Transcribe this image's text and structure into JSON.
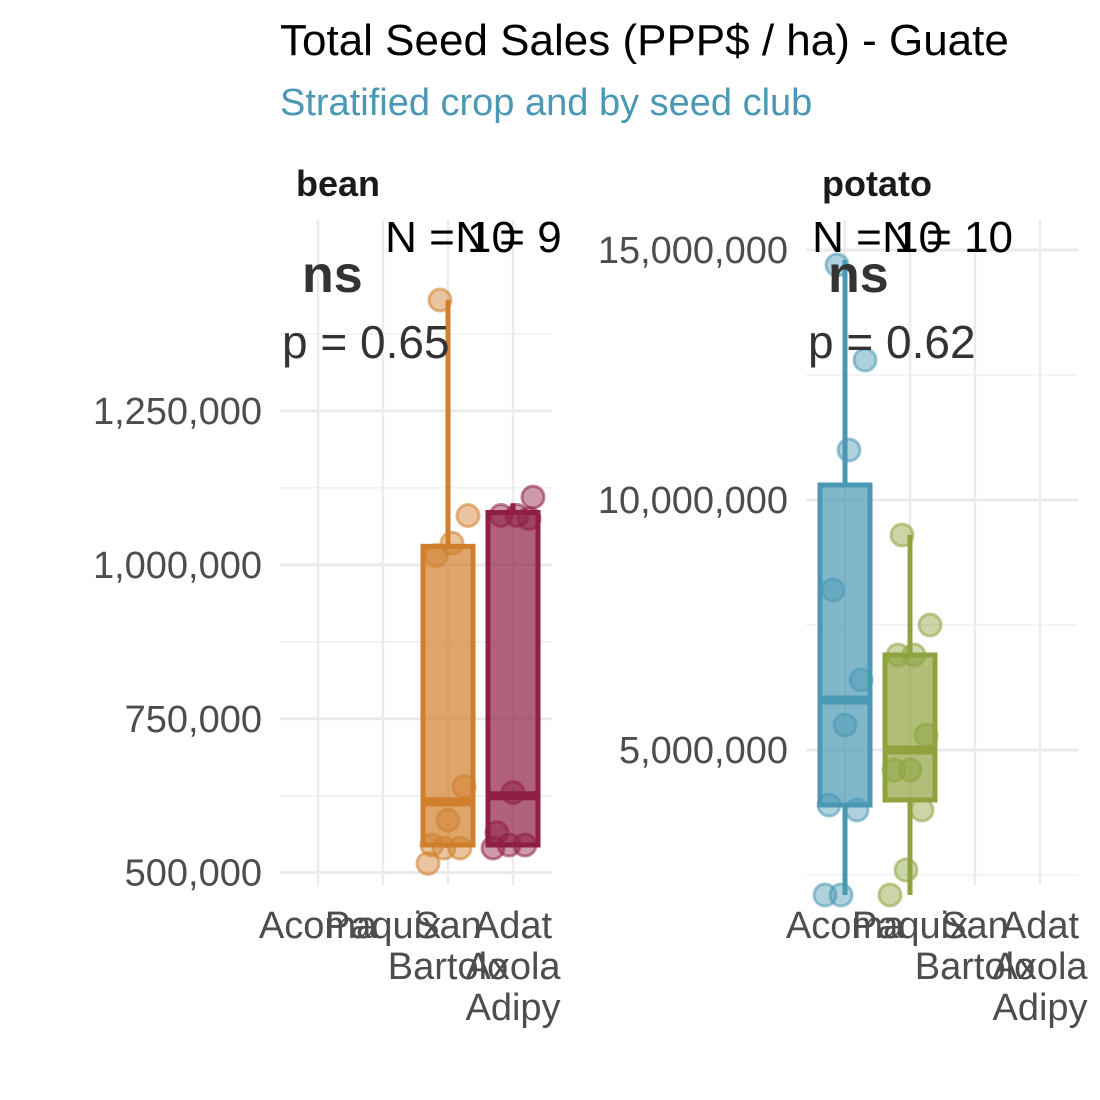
{
  "chart_data": {
    "type": "box",
    "title": "Total Seed Sales (PPP$ / ha) - Guate",
    "subtitle": "Stratified crop and by seed club",
    "colors": {
      "Acoma": "#4A98B4",
      "Paquix": "#8FA23F",
      "San Bartolo": "#D07F2C",
      "Adat Axola Adipy": "#8F1F43",
      "subtitle": "#4A98B4"
    },
    "x_categories": [
      "Acoma",
      "Paquix",
      "San Bartolo",
      "Adat Axola Adipy"
    ],
    "panels": [
      {
        "name": "bean",
        "test_label": "ns",
        "p_label": "p = 0.65",
        "n_labels": [
          "N = 10",
          "N = 9"
        ],
        "yticks": [
          500000,
          750000,
          1000000,
          1250000
        ],
        "ytick_labels": [
          "500,000",
          "750,000",
          "1,000,000",
          "1,250,000"
        ],
        "ylim": [
          480000,
          1560000
        ],
        "boxes": [
          {
            "category": "San Bartolo",
            "whisker_low": 540000,
            "q1": 545000,
            "median": 615000,
            "q3": 1030000,
            "whisker_high": 1430000,
            "points": [
              515000,
              540000,
              540000,
              545000,
              585000,
              640000,
              1015000,
              1035000,
              1080000,
              1430000
            ]
          },
          {
            "category": "Adat Axola Adipy",
            "whisker_low": 545000,
            "q1": 545000,
            "median": 625000,
            "q3": 1085000,
            "whisker_high": 1100000,
            "points": [
              540000,
              545000,
              545000,
              565000,
              630000,
              1075000,
              1080000,
              1080000,
              1110000
            ]
          }
        ]
      },
      {
        "name": "potato",
        "test_label": "ns",
        "p_label": "p = 0.62",
        "n_labels": [
          "N = 10",
          "N = 10"
        ],
        "yticks": [
          5000000,
          10000000,
          15000000
        ],
        "ytick_labels": [
          "5,000,000",
          "10,000,000",
          "15,000,000"
        ],
        "ylim": [
          2300000,
          15600000
        ],
        "boxes": [
          {
            "category": "Acoma",
            "whisker_low": 2100000,
            "q1": 3900000,
            "median": 6000000,
            "q3": 10300000,
            "whisker_high": 14800000,
            "points": [
              2100000,
              2100000,
              3800000,
              3900000,
              5500000,
              6400000,
              8200000,
              11000000,
              12800000,
              14700000
            ]
          },
          {
            "category": "Paquix",
            "whisker_low": 2100000,
            "q1": 4000000,
            "median": 5000000,
            "q3": 6900000,
            "whisker_high": 9300000,
            "points": [
              2100000,
              2600000,
              3800000,
              4600000,
              4600000,
              5300000,
              6900000,
              6900000,
              7500000,
              9300000
            ]
          }
        ]
      }
    ],
    "grid": true
  }
}
